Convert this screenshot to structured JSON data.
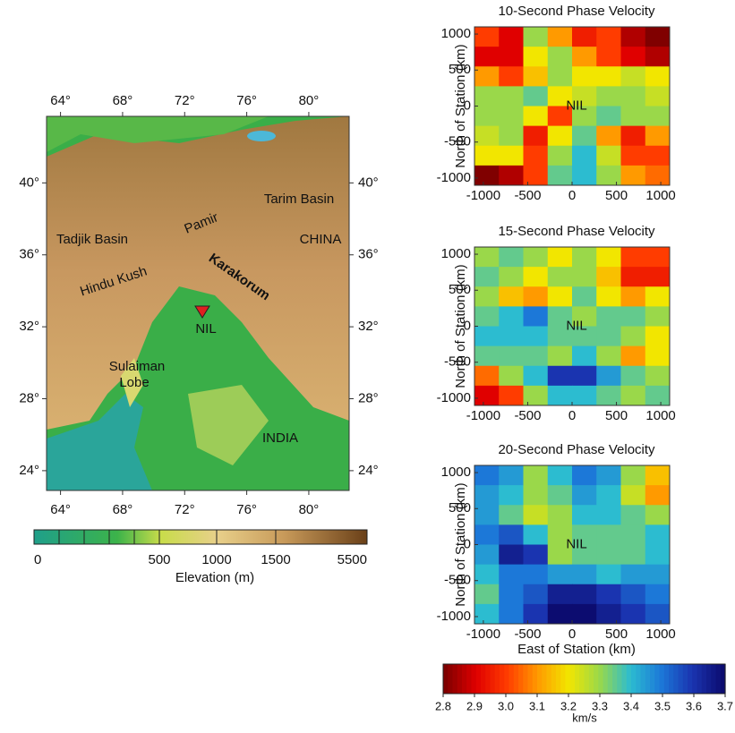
{
  "map": {
    "lon_range": [
      63.1,
      82.6
    ],
    "lat_range": [
      22.9,
      43.7
    ],
    "lon_ticks": [
      {
        "value": 64,
        "label": "64°"
      },
      {
        "value": 68,
        "label": "68°"
      },
      {
        "value": 72,
        "label": "72°"
      },
      {
        "value": 76,
        "label": "76°"
      },
      {
        "value": 80,
        "label": "80°"
      }
    ],
    "lat_ticks": [
      {
        "value": 40,
        "label": "40°"
      },
      {
        "value": 36,
        "label": "36°"
      },
      {
        "value": 32,
        "label": "32°"
      },
      {
        "value": 28,
        "label": "28°"
      },
      {
        "value": 24,
        "label": "24°"
      }
    ],
    "places": [
      "Tarim Basin",
      "CHINA",
      "Tadjik Basin",
      "Pamir",
      "Karakorum",
      "Hindu Kush",
      "NIL",
      "Sulaiman",
      "Lobe",
      "INDIA"
    ],
    "elevation_colorbar": {
      "ticks": [
        0,
        500,
        1000,
        1500,
        5500
      ],
      "title": "Elevation (m)"
    }
  },
  "panels": [
    {
      "title": "10-Second Phase Velocity",
      "y_label": "North of Station (km)",
      "station": "NIL",
      "xlim": [
        -1100,
        1100
      ],
      "ylim": [
        -1100,
        1100
      ],
      "xticks": [
        -1000,
        -500,
        0,
        500,
        1000
      ],
      "yticks": [
        1000,
        500,
        0,
        -500,
        -1000
      ],
      "grid": [
        [
          3.0,
          2.9,
          3.3,
          3.1,
          2.95,
          3.0,
          2.85,
          2.8
        ],
        [
          2.9,
          2.9,
          3.2,
          3.3,
          3.1,
          3.0,
          2.9,
          2.85
        ],
        [
          3.1,
          3.0,
          3.15,
          3.3,
          3.2,
          3.2,
          3.25,
          3.2
        ],
        [
          3.3,
          3.3,
          3.35,
          3.2,
          3.25,
          3.3,
          3.3,
          3.25
        ],
        [
          3.3,
          3.3,
          3.2,
          3.0,
          3.3,
          3.35,
          3.3,
          3.3
        ],
        [
          3.25,
          3.3,
          2.95,
          3.2,
          3.35,
          3.1,
          2.95,
          3.1
        ],
        [
          3.2,
          3.2,
          3.0,
          3.3,
          3.4,
          3.25,
          3.0,
          3.0
        ],
        [
          2.8,
          2.85,
          3.0,
          3.35,
          3.4,
          3.3,
          3.1,
          3.05
        ]
      ]
    },
    {
      "title": "15-Second Phase Velocity",
      "y_label": "North of Station (km)",
      "station": "NIL",
      "xlim": [
        -1100,
        1100
      ],
      "ylim": [
        -1100,
        1100
      ],
      "xticks": [
        -1000,
        -500,
        0,
        500,
        1000
      ],
      "yticks": [
        1000,
        500,
        0,
        -500,
        -1000
      ],
      "grid": [
        [
          3.3,
          3.35,
          3.3,
          3.2,
          3.3,
          3.2,
          3.0,
          3.0
        ],
        [
          3.35,
          3.3,
          3.2,
          3.3,
          3.3,
          3.15,
          2.95,
          2.95
        ],
        [
          3.3,
          3.15,
          3.1,
          3.2,
          3.35,
          3.2,
          3.1,
          3.2
        ],
        [
          3.35,
          3.4,
          3.5,
          3.35,
          3.3,
          3.35,
          3.35,
          3.3
        ],
        [
          3.4,
          3.4,
          3.4,
          3.35,
          3.35,
          3.35,
          3.3,
          3.2
        ],
        [
          3.35,
          3.35,
          3.35,
          3.3,
          3.4,
          3.3,
          3.1,
          3.2
        ],
        [
          3.05,
          3.3,
          3.4,
          3.6,
          3.6,
          3.45,
          3.35,
          3.3
        ],
        [
          2.9,
          3.0,
          3.3,
          3.4,
          3.4,
          3.35,
          3.3,
          3.35
        ]
      ]
    },
    {
      "title": "20-Second Phase Velocity",
      "y_label": "North of Station (km)",
      "x_label": "East of Station (km)",
      "station": "NIL",
      "xlim": [
        -1100,
        1100
      ],
      "ylim": [
        -1100,
        1100
      ],
      "xticks": [
        -1000,
        -500,
        0,
        500,
        1000
      ],
      "yticks": [
        1000,
        500,
        0,
        -500,
        -1000
      ],
      "grid": [
        [
          3.5,
          3.45,
          3.3,
          3.4,
          3.5,
          3.45,
          3.3,
          3.15
        ],
        [
          3.45,
          3.4,
          3.3,
          3.35,
          3.45,
          3.4,
          3.25,
          3.1
        ],
        [
          3.45,
          3.35,
          3.25,
          3.3,
          3.4,
          3.4,
          3.35,
          3.3
        ],
        [
          3.5,
          3.55,
          3.4,
          3.3,
          3.35,
          3.35,
          3.35,
          3.4
        ],
        [
          3.45,
          3.65,
          3.6,
          3.3,
          3.35,
          3.35,
          3.35,
          3.4
        ],
        [
          3.4,
          3.5,
          3.5,
          3.45,
          3.45,
          3.4,
          3.45,
          3.45
        ],
        [
          3.35,
          3.5,
          3.55,
          3.65,
          3.65,
          3.6,
          3.55,
          3.5
        ],
        [
          3.4,
          3.5,
          3.6,
          3.7,
          3.7,
          3.65,
          3.6,
          3.55
        ]
      ]
    }
  ],
  "velocity_colorbar": {
    "ticks": [
      2.8,
      2.9,
      {
        "value": 3,
        "label": "3.0"
      },
      3.1,
      3.2,
      3.3,
      3.4,
      3.5,
      3.6,
      3.7
    ],
    "colors": [
      "#800000",
      "#e00000",
      "#ff3c00",
      "#ff9a00",
      "#f2e600",
      "#9ad84a",
      "#2cbcd0",
      "#1c78d8",
      "#1a34b0",
      "#0c0c70"
    ],
    "unit": "km/s"
  }
}
